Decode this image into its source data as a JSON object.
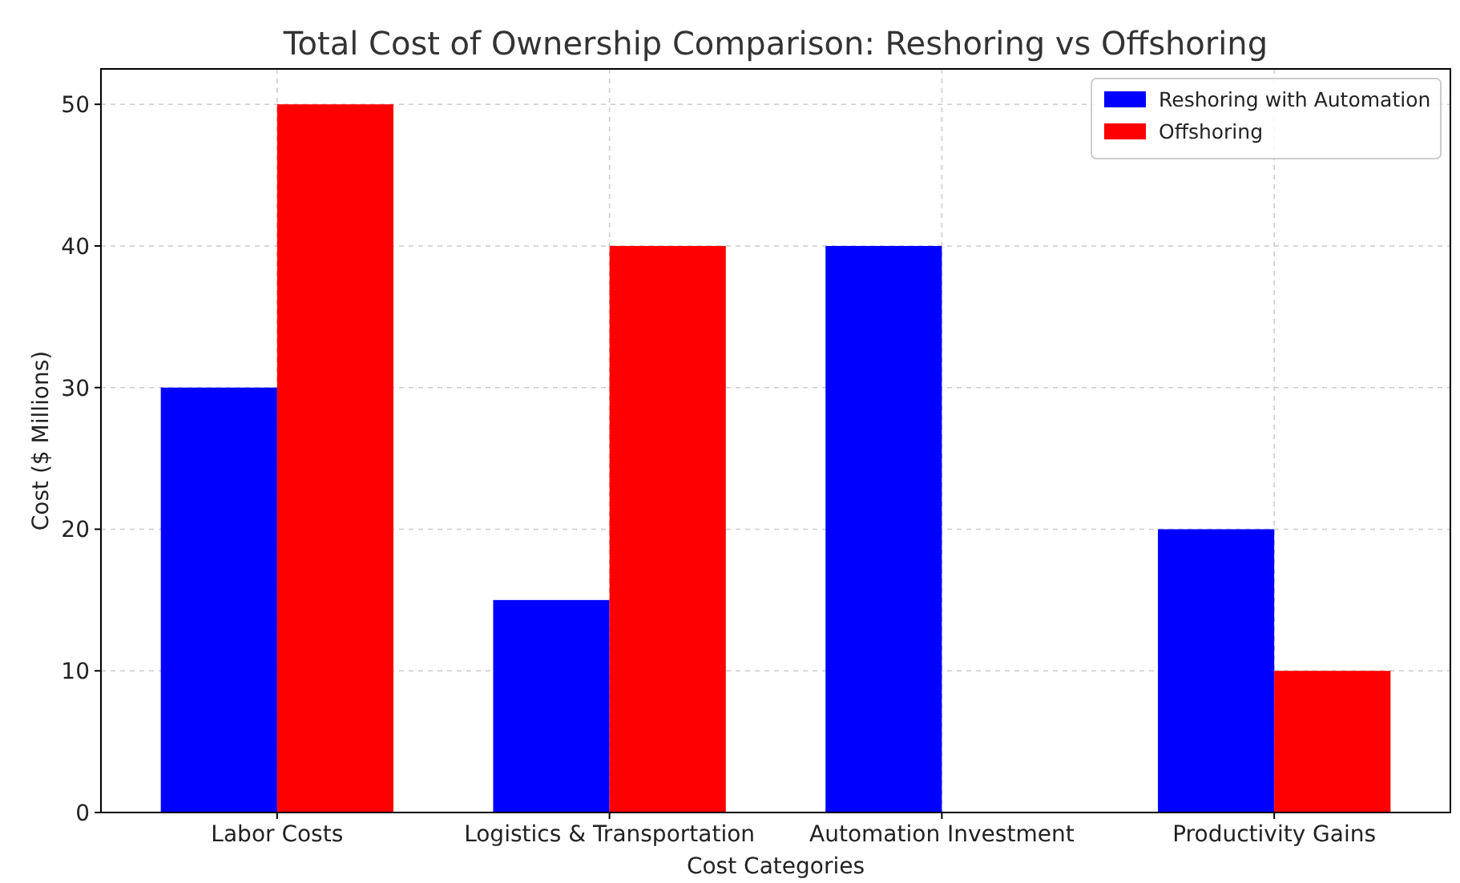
{
  "chart_data": {
    "type": "bar",
    "title": "Total Cost of Ownership Comparison: Reshoring vs Offshoring",
    "xlabel": "Cost Categories",
    "ylabel": "Cost ($ Millions)",
    "categories": [
      "Labor Costs",
      "Logistics & Transportation",
      "Automation Investment",
      "Productivity Gains"
    ],
    "series": [
      {
        "name": "Reshoring with Automation",
        "color": "#0000ff",
        "values": [
          30,
          15,
          40,
          20
        ]
      },
      {
        "name": "Offshoring",
        "color": "#ff0000",
        "values": [
          50,
          40,
          0,
          10
        ]
      }
    ],
    "ylim": [
      0,
      52.5
    ],
    "yticks": [
      0,
      10,
      20,
      30,
      40,
      50
    ],
    "grid": true,
    "legend": "top right"
  }
}
